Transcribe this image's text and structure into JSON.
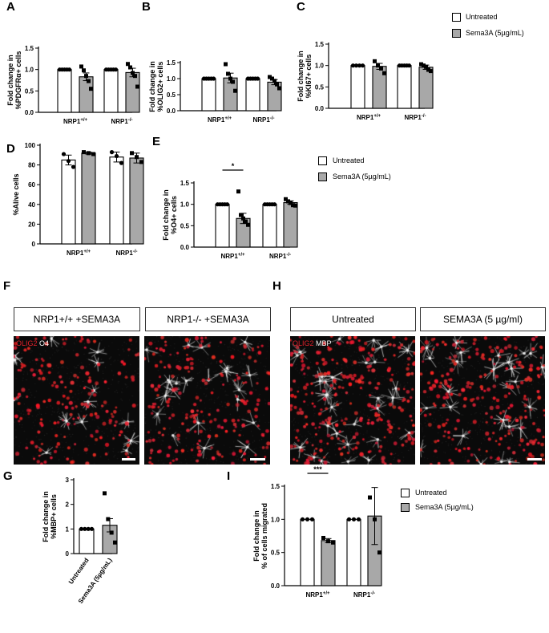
{
  "panels": {
    "A": "A",
    "B": "B",
    "C": "C",
    "D": "D",
    "E": "E",
    "F": "F",
    "G": "G",
    "H": "H",
    "I": "I"
  },
  "legend": {
    "untreated": "Untreated",
    "sema3a": "Sema3A (5µg/mL)"
  },
  "colors": {
    "untreated": "#ffffff",
    "sema3a": "#a8a8a8",
    "stroke": "#000000",
    "olig2": "#e0202a",
    "stain": "#ffffff",
    "micro_bg": "#0a0a0a"
  },
  "micrographs": {
    "F": {
      "labels": [
        "NRP1+/+ +SEMA3A",
        "NRP1-/- +SEMA3A"
      ],
      "stain_label": [
        "OLIG2",
        " O4"
      ]
    },
    "H": {
      "labels": [
        "Untreated",
        "SEMA3A (5 µg/ml)"
      ],
      "stain_label": [
        "OLIG2",
        " MBP"
      ]
    }
  },
  "chart_data": [
    {
      "id": "A",
      "type": "bar",
      "ylabel": [
        "Fold change in",
        "%PDGFRα+ cells"
      ],
      "ylim": [
        0,
        1.5
      ],
      "yticks": [
        0.0,
        0.5,
        1.0,
        1.5
      ],
      "categories": [
        "NRP1+/+",
        "NRP1-/-"
      ],
      "series": [
        {
          "name": "Untreated",
          "values": [
            1.0,
            1.0
          ],
          "errors": [
            0,
            0
          ],
          "points": [
            [
              1,
              1,
              1,
              1,
              1
            ],
            [
              1,
              1,
              1,
              1,
              1
            ]
          ]
        },
        {
          "name": "Sema3A (5µg/mL)",
          "values": [
            0.83,
            0.93
          ],
          "errors": [
            0.09,
            0.1
          ],
          "points": [
            [
              1.07,
              0.98,
              0.85,
              0.73,
              0.55
            ],
            [
              1.13,
              1.05,
              0.92,
              0.85,
              0.6
            ]
          ]
        }
      ],
      "significance": []
    },
    {
      "id": "B",
      "type": "bar",
      "ylabel": [
        "Fold change in",
        "%OLIG2+ cells"
      ],
      "ylim": [
        0,
        1.5
      ],
      "yticks": [
        0.0,
        0.5,
        1.0,
        1.5
      ],
      "categories": [
        "NRP1+/+",
        "NRP1-/-"
      ],
      "series": [
        {
          "name": "Untreated",
          "values": [
            1.0,
            1.0
          ],
          "errors": [
            0,
            0
          ],
          "points": [
            [
              1,
              1,
              1,
              1,
              1
            ],
            [
              1,
              1,
              1,
              1,
              1
            ]
          ]
        },
        {
          "name": "Sema3A (5µg/mL)",
          "values": [
            1.02,
            0.89
          ],
          "errors": [
            0.15,
            0.08
          ],
          "points": [
            [
              1.45,
              1.15,
              1.0,
              0.9,
              0.62
            ],
            [
              1.05,
              1.0,
              0.93,
              0.82,
              0.7
            ]
          ]
        }
      ],
      "significance": []
    },
    {
      "id": "C",
      "type": "bar",
      "ylabel": [
        "Fold change in",
        "%KI67+ cells"
      ],
      "ylim": [
        0,
        1.5
      ],
      "yticks": [
        0.0,
        0.5,
        1.0,
        1.5
      ],
      "categories": [
        "NRP1+/+",
        "NRP1-/-"
      ],
      "series": [
        {
          "name": "Untreated",
          "values": [
            1.0,
            1.0
          ],
          "errors": [
            0,
            0
          ],
          "points": [
            [
              1,
              1,
              1,
              1
            ],
            [
              1,
              1,
              1,
              1,
              1
            ]
          ]
        },
        {
          "name": "Sema3A (5µg/mL)",
          "values": [
            0.98,
            0.96
          ],
          "errors": [
            0.07,
            0.05
          ],
          "points": [
            [
              1.1,
              1.0,
              0.93,
              0.82
            ],
            [
              1.03,
              1.0,
              0.97,
              0.9,
              0.87
            ]
          ]
        }
      ],
      "significance": []
    },
    {
      "id": "D",
      "type": "bar",
      "ylabel": [
        "%Alive cells"
      ],
      "ylim": [
        0,
        100
      ],
      "yticks": [
        0,
        20,
        40,
        60,
        80,
        100
      ],
      "categories": [
        "NRP1+/+",
        "NRP1-/-"
      ],
      "series": [
        {
          "name": "Untreated",
          "values": [
            85,
            88
          ],
          "errors": [
            5,
            5
          ],
          "points": [
            [
              91,
              84,
              78
            ],
            [
              93,
              89,
              82
            ]
          ]
        },
        {
          "name": "Sema3A (5µg/mL)",
          "values": [
            92,
            87
          ],
          "errors": [
            1,
            5
          ],
          "points": [
            [
              93,
              92,
              91
            ],
            [
              92,
              88,
              83
            ]
          ]
        }
      ],
      "significance": []
    },
    {
      "id": "E",
      "type": "bar",
      "ylabel": [
        "Fold change in",
        "%O4+ cells"
      ],
      "ylim": [
        0,
        1.5
      ],
      "yticks": [
        0.0,
        0.5,
        1.0,
        1.5
      ],
      "categories": [
        "NRP1+/+",
        "NRP1-/-"
      ],
      "series": [
        {
          "name": "Untreated",
          "values": [
            1.0,
            1.0
          ],
          "errors": [
            0,
            0
          ],
          "points": [
            [
              1,
              1,
              1,
              1,
              1
            ],
            [
              1,
              1,
              1,
              1,
              1
            ]
          ]
        },
        {
          "name": "Sema3A (5µg/mL)",
          "values": [
            0.67,
            1.04
          ],
          "errors": [
            0.12,
            0.04
          ],
          "points": [
            [
              1.3,
              0.75,
              0.67,
              0.6,
              0.52
            ],
            [
              1.12,
              1.07,
              1.03,
              0.98,
              0.97
            ]
          ]
        }
      ],
      "significance": [
        {
          "category": 0,
          "label": "*"
        }
      ]
    },
    {
      "id": "G",
      "type": "bar",
      "ylabel": [
        "Fold change in",
        "%MBP+ cells"
      ],
      "ylim": [
        0,
        3
      ],
      "yticks": [
        0,
        1,
        2,
        3
      ],
      "categories": [
        "Untreated",
        "Sema3A (5µg/mL)"
      ],
      "series": [
        {
          "name": "",
          "values": [
            1.0,
            1.15
          ],
          "errors": [
            0,
            0.27
          ],
          "points": [
            [
              1,
              1,
              1,
              1
            ],
            [
              2.45,
              1.4,
              0.85,
              0.45
            ]
          ]
        }
      ],
      "significance": []
    },
    {
      "id": "I",
      "type": "bar",
      "ylabel": [
        "Fold change in",
        "% of cells migrated"
      ],
      "ylim": [
        0,
        1.5
      ],
      "yticks": [
        0.0,
        0.5,
        1.0,
        1.5
      ],
      "categories": [
        "NRP1+/+",
        "NRP1-/-"
      ],
      "series": [
        {
          "name": "Untreated",
          "values": [
            1.0,
            1.0
          ],
          "errors": [
            0,
            0
          ],
          "points": [
            [
              1,
              1,
              1
            ],
            [
              1,
              1,
              1
            ]
          ]
        },
        {
          "name": "Sema3A (5µg/mL)",
          "values": [
            0.68,
            1.05
          ],
          "errors": [
            0.03,
            0.43
          ],
          "points": [
            [
              0.72,
              0.67,
              0.65
            ],
            [
              1.33,
              1.0,
              0.5
            ]
          ]
        }
      ],
      "significance": [
        {
          "category": 0,
          "label": "***"
        }
      ]
    }
  ]
}
